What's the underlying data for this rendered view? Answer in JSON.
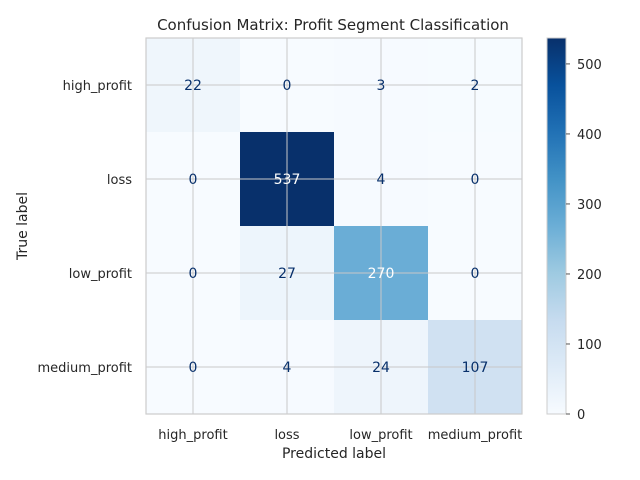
{
  "chart_data": {
    "type": "heatmap",
    "title": "Confusion Matrix: Profit Segment Classification",
    "xlabel": "Predicted label",
    "ylabel": "True label",
    "x_categories": [
      "high_profit",
      "loss",
      "low_profit",
      "medium_profit"
    ],
    "y_categories": [
      "high_profit",
      "loss",
      "low_profit",
      "medium_profit"
    ],
    "matrix": [
      [
        22,
        0,
        3,
        2
      ],
      [
        0,
        537,
        4,
        0
      ],
      [
        0,
        27,
        270,
        0
      ],
      [
        0,
        4,
        24,
        107
      ]
    ],
    "colormap": "Blues",
    "color_range": [
      0,
      537
    ],
    "colorbar_ticks": [
      0,
      100,
      200,
      300,
      400,
      500
    ],
    "grid": true
  }
}
